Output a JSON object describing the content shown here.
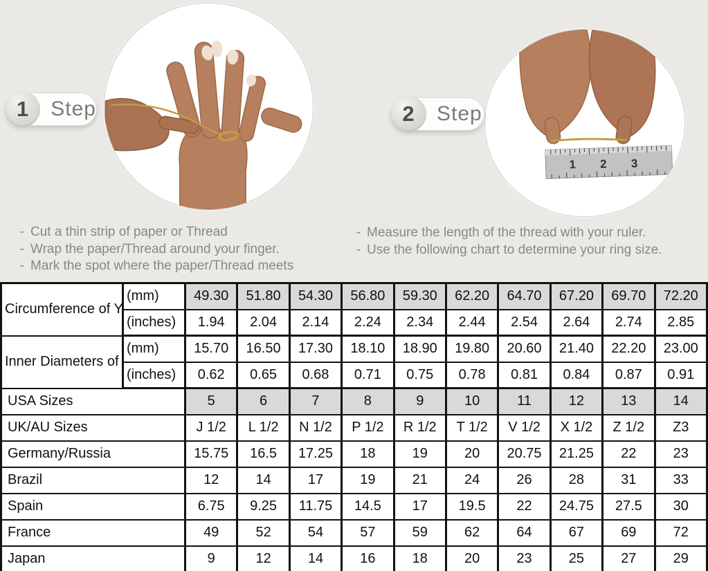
{
  "ui": {
    "bullet": "-"
  },
  "colors": {
    "background": "#ebe9e5",
    "table_shaded_cell": "#d9d9d9",
    "table_border": "#121212",
    "step_text": "#7b7b78",
    "instruction_text": "#8a8884",
    "thread_gold": "#c59a45",
    "skin_tone": "#b67f5e"
  },
  "steps": [
    {
      "number": "1",
      "label": "Step",
      "instructions": [
        "Cut a thin strip of paper or Thread",
        "Wrap the paper/Thread around your finger.",
        "Mark the spot where the paper/Thread meets"
      ]
    },
    {
      "number": "2",
      "label": "Step",
      "instructions": [
        "Measure the length of the thread with your ruler.",
        "Use the following chart to determine your ring size."
      ]
    }
  ],
  "photos": {
    "step1": {
      "icon": "hand-with-thread-photo"
    },
    "step2": {
      "icon": "measuring-thread-with-ruler-photo",
      "ruler_labels": [
        "1",
        "2",
        "3"
      ]
    }
  },
  "table": {
    "rows": [
      {
        "label": "Circumference of Your Finger",
        "rowspan": 2,
        "sublabel": "(mm)",
        "shaded": true,
        "values": [
          "49.30",
          "51.80",
          "54.30",
          "56.80",
          "59.30",
          "62.20",
          "64.70",
          "67.20",
          "69.70",
          "72.20"
        ]
      },
      {
        "sublabel": "(inches)",
        "groupEnd": true,
        "values": [
          "1.94",
          "2.04",
          "2.14",
          "2.24",
          "2.34",
          "2.44",
          "2.54",
          "2.64",
          "2.74",
          "2.85"
        ]
      },
      {
        "label": "Inner Diameters of Rings",
        "rowspan": 2,
        "sublabel": "(mm)",
        "values": [
          "15.70",
          "16.50",
          "17.30",
          "18.10",
          "18.90",
          "19.80",
          "20.60",
          "21.40",
          "22.20",
          "23.00"
        ]
      },
      {
        "sublabel": "(inches)",
        "groupEnd": true,
        "values": [
          "0.62",
          "0.65",
          "0.68",
          "0.71",
          "0.75",
          "0.78",
          "0.81",
          "0.84",
          "0.87",
          "0.91"
        ]
      },
      {
        "label": "USA Sizes",
        "colspan": 2,
        "shaded": true,
        "values": [
          "5",
          "6",
          "7",
          "8",
          "9",
          "10",
          "11",
          "12",
          "13",
          "14"
        ]
      },
      {
        "label": "UK/AU Sizes",
        "colspan": 2,
        "values": [
          "J 1/2",
          "L 1/2",
          "N 1/2",
          "P 1/2",
          "R 1/2",
          "T 1/2",
          "V 1/2",
          "X 1/2",
          "Z 1/2",
          "Z3"
        ]
      },
      {
        "label": "Germany/Russia",
        "colspan": 2,
        "values": [
          "15.75",
          "16.5",
          "17.25",
          "18",
          "19",
          "20",
          "20.75",
          "21.25",
          "22",
          "23"
        ]
      },
      {
        "label": "Brazil",
        "colspan": 2,
        "values": [
          "12",
          "14",
          "17",
          "19",
          "21",
          "24",
          "26",
          "28",
          "31",
          "33"
        ]
      },
      {
        "label": "Spain",
        "colspan": 2,
        "values": [
          "6.75",
          "9.25",
          "11.75",
          "14.5",
          "17",
          "19.5",
          "22",
          "24.75",
          "27.5",
          "30"
        ]
      },
      {
        "label": "France",
        "colspan": 2,
        "values": [
          "49",
          "52",
          "54",
          "57",
          "59",
          "62",
          "64",
          "67",
          "69",
          "72"
        ]
      },
      {
        "label": "Japan",
        "colspan": 2,
        "values": [
          "9",
          "12",
          "14",
          "16",
          "18",
          "20",
          "23",
          "25",
          "27",
          "29"
        ]
      }
    ]
  }
}
